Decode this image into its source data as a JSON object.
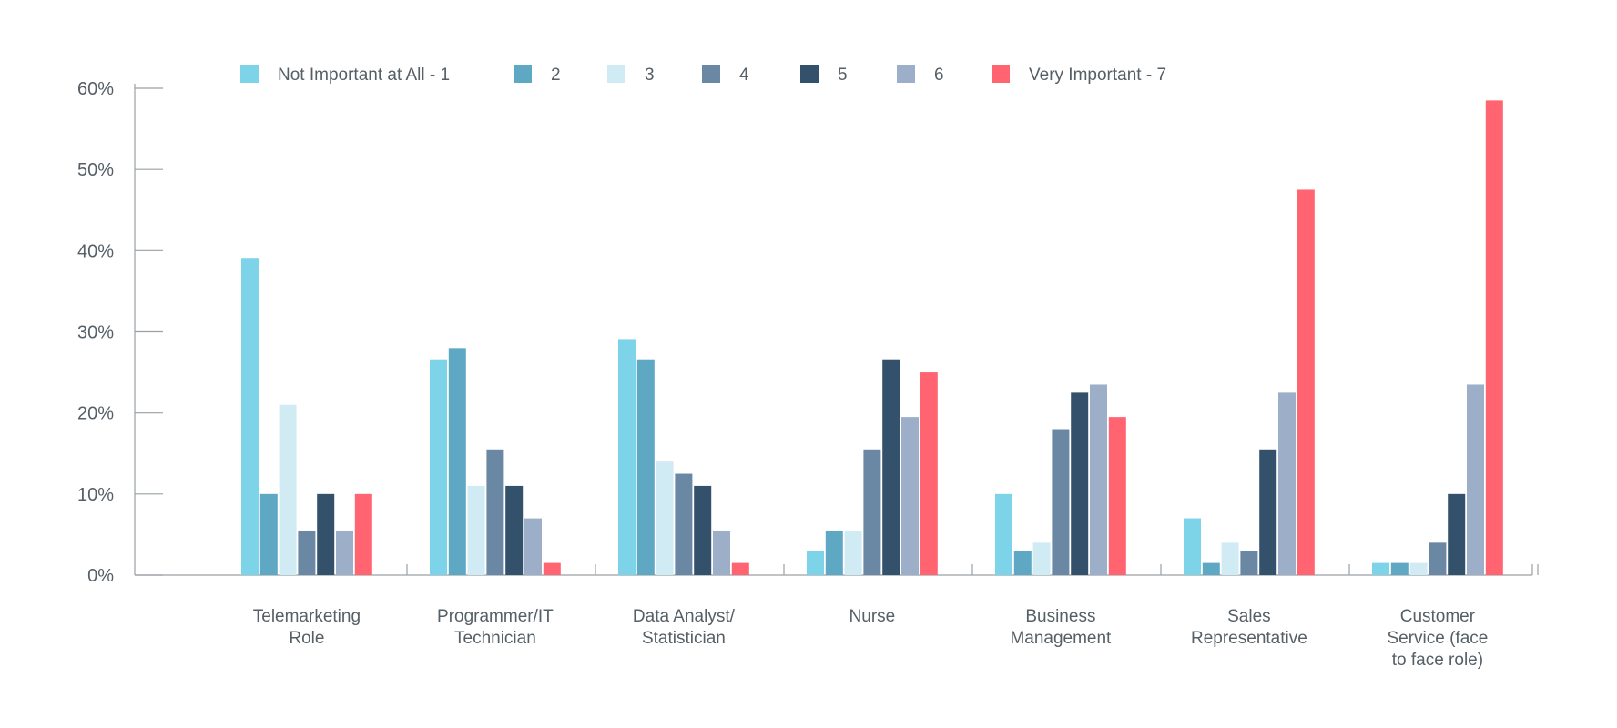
{
  "chart_data": {
    "type": "bar",
    "title": "",
    "xlabel": "",
    "ylabel": "",
    "ylim": [
      0,
      60
    ],
    "y_ticks": [
      "0%",
      "10%",
      "20%",
      "30%",
      "40%",
      "50%",
      "60%"
    ],
    "y_tick_values": [
      0,
      10,
      20,
      30,
      40,
      50,
      60
    ],
    "grid": false,
    "legend_position": "top",
    "categories": [
      [
        "Telemarketing",
        "Role"
      ],
      [
        "Programmer/IT",
        "Technician"
      ],
      [
        "Data Analyst/",
        "Statistician"
      ],
      [
        "Nurse"
      ],
      [
        "Business",
        "Management"
      ],
      [
        "Sales",
        "Representative"
      ],
      [
        "Customer",
        "Service (face",
        "to face role)"
      ]
    ],
    "series": [
      {
        "name": "Not Important at All - 1",
        "color": "#7dd3e8",
        "values": [
          39,
          26.5,
          29,
          3,
          10,
          7,
          1.5
        ]
      },
      {
        "name": "2",
        "color": "#5ea8c4",
        "values": [
          10,
          28,
          26.5,
          5.5,
          3,
          1.5,
          1.5
        ]
      },
      {
        "name": "3",
        "color": "#d0ebf4",
        "values": [
          21,
          11,
          14,
          5.5,
          4,
          4,
          1.5
        ]
      },
      {
        "name": "4",
        "color": "#6a88a4",
        "values": [
          5.5,
          15.5,
          12.5,
          15.5,
          18,
          3,
          4
        ]
      },
      {
        "name": "5",
        "color": "#33516b",
        "values": [
          10,
          11,
          11,
          26.5,
          22.5,
          15.5,
          10
        ]
      },
      {
        "name": "6",
        "color": "#9dafc8",
        "values": [
          5.5,
          7,
          5.5,
          19.5,
          23.5,
          22.5,
          23.5
        ]
      },
      {
        "name": "Very Important - 7",
        "color": "#ff6470",
        "values": [
          10,
          1.5,
          1.5,
          25,
          19.5,
          47.5,
          58.5
        ]
      }
    ]
  }
}
